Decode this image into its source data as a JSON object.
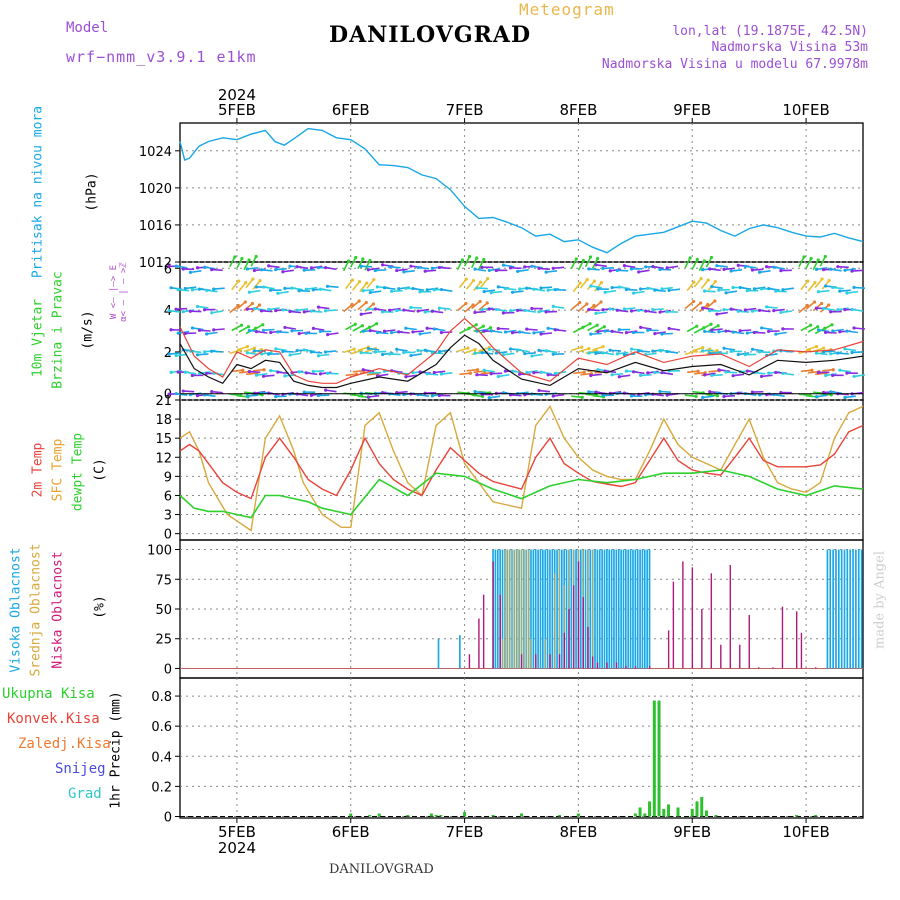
{
  "header": {
    "model_label": "Model",
    "model_name": "wrf−nmm_v3.9.1  e1km",
    "title": "DANILOVGRAD",
    "subtitle": "Meteogram",
    "lonlat": "lon,lat (19.1875E, 42.5N)",
    "elevation": "Nadmorska Visina 53m",
    "model_elevation": "Nadmorska Visina u modelu 67.9978m"
  },
  "footer": {
    "station": "DANILOVGRAD"
  },
  "watermark": "made by Angel",
  "colors": {
    "pressure": "#19a7e6",
    "temp2m": "#e8443a",
    "sfc": "#d8a93c",
    "dewpt": "#2ed02e",
    "high_cloud": "#19a7e6",
    "mid_cloud": "#d8a93c",
    "low_cloud": "#b01a7a",
    "precip": "#2ec02e",
    "wind_speed": "#111111",
    "wind_gust": "#e8443a"
  },
  "chart_data": [
    {
      "type": "line",
      "panel": "pressure",
      "ylabel": "Pritisak na nivou mora",
      "unit": "(hPa)",
      "ylim": [
        1012,
        1027
      ],
      "yticks": [
        "1024",
        "1020",
        "1016",
        "1012"
      ],
      "xticks": [
        "5FEB",
        "6FEB",
        "7FEB",
        "8FEB",
        "9FEB",
        "10FEB"
      ],
      "xyear": "2024",
      "x_hours": [
        0,
        1,
        2,
        4,
        6,
        9,
        12,
        15,
        18,
        20,
        22,
        24,
        27,
        30,
        33,
        36,
        39,
        42,
        45,
        48,
        51,
        54,
        57,
        60,
        63,
        66,
        69,
        72,
        75,
        78,
        81,
        84,
        87,
        90,
        93,
        96,
        99,
        102,
        105,
        108,
        111,
        114,
        117,
        120,
        123,
        126,
        129,
        132,
        135,
        138,
        141,
        144
      ],
      "values": [
        1025,
        1023,
        1023.2,
        1024.5,
        1025,
        1025.4,
        1025.2,
        1025.8,
        1026.2,
        1025,
        1024.6,
        1025.3,
        1026.4,
        1026.2,
        1025.4,
        1025.2,
        1024.2,
        1022.5,
        1022.4,
        1022.2,
        1021.4,
        1021,
        1019.8,
        1018,
        1016.7,
        1016.8,
        1016.3,
        1015.7,
        1014.8,
        1015,
        1014.2,
        1014.4,
        1013.6,
        1013,
        1014,
        1014.8,
        1015,
        1015.2,
        1015.8,
        1016.4,
        1016.2,
        1015.4,
        1014.8,
        1015.6,
        1016,
        1015.7,
        1015.2,
        1014.8,
        1014.7,
        1015.1,
        1014.6,
        1014.2
      ]
    },
    {
      "type": "line",
      "panel": "wind",
      "ylabel": "10m Vjetar",
      "ylabel2": "Brzina i Pravac",
      "unit": "(m/s)",
      "compass": "W  <— |—> E",
      "compass2": "α< — | — >ℤ",
      "ylim": [
        -0.3,
        6.3
      ],
      "yticks": [
        "6",
        "4",
        "2",
        "0"
      ],
      "series": [
        {
          "key": "speed",
          "x": [
            0,
            3,
            6,
            9,
            12,
            15,
            18,
            21,
            24,
            27,
            30,
            33,
            36,
            42,
            48,
            54,
            57,
            60,
            63,
            66,
            72,
            78,
            84,
            90,
            96,
            102,
            108,
            114,
            120,
            126,
            132,
            138,
            144
          ],
          "values": [
            2.4,
            1.2,
            0.8,
            0.5,
            1.4,
            1.2,
            1.6,
            1.5,
            0.6,
            0.4,
            0.3,
            0.3,
            0.5,
            0.8,
            0.6,
            1.4,
            2.2,
            2.8,
            2.4,
            1.6,
            0.7,
            0.4,
            1.2,
            1.0,
            1.5,
            1.1,
            1.3,
            1.4,
            0.9,
            1.6,
            1.5,
            1.6,
            1.8
          ]
        },
        {
          "key": "gust",
          "x": [
            0,
            3,
            6,
            9,
            12,
            15,
            18,
            21,
            24,
            27,
            30,
            33,
            36,
            42,
            48,
            54,
            57,
            60,
            63,
            66,
            72,
            78,
            84,
            90,
            96,
            102,
            108,
            114,
            120,
            126,
            132,
            138,
            144
          ],
          "values": [
            3.2,
            1.8,
            1.2,
            0.8,
            2.0,
            1.7,
            2.1,
            2.0,
            0.9,
            0.6,
            0.5,
            0.5,
            0.8,
            1.2,
            0.9,
            2.0,
            3.0,
            3.6,
            3.0,
            2.2,
            1.0,
            0.6,
            1.7,
            1.4,
            2.0,
            1.5,
            1.8,
            1.9,
            1.3,
            2.1,
            2.0,
            2.1,
            2.5
          ]
        }
      ]
    },
    {
      "type": "line",
      "panel": "temperature",
      "labels": [
        "2m Temp",
        "SFC Temp",
        "dewpt Temp"
      ],
      "unit": "(C)",
      "ylim": [
        -1,
        21
      ],
      "yticks": [
        "21",
        "18",
        "15",
        "12",
        "9",
        "6",
        "3",
        "0"
      ],
      "series": [
        {
          "key": "t2m",
          "x": [
            0,
            2,
            4,
            6,
            9,
            12,
            15,
            18,
            21,
            24,
            27,
            30,
            33,
            36,
            39,
            42,
            45,
            48,
            51,
            54,
            57,
            60,
            63,
            66,
            69,
            72,
            75,
            78,
            81,
            84,
            87,
            90,
            93,
            96,
            99,
            102,
            105,
            108,
            111,
            114,
            117,
            120,
            123,
            126,
            129,
            132,
            135,
            138,
            141,
            144
          ],
          "values": [
            13,
            14,
            13,
            11,
            8,
            6.5,
            5.5,
            12,
            15,
            12,
            8.5,
            7,
            6,
            10,
            15,
            11,
            8.5,
            7,
            6,
            10,
            13.5,
            11.5,
            9.5,
            8.2,
            7.6,
            7,
            12,
            15,
            11,
            9.5,
            8.2,
            7.8,
            7.4,
            8,
            11.5,
            15,
            11.5,
            10,
            9.5,
            9.2,
            12,
            15,
            11.5,
            10.5,
            10.5,
            10.5,
            10.8,
            12.5,
            16,
            17
          ]
        },
        {
          "key": "sfc",
          "x": [
            0,
            2,
            4,
            6,
            8,
            10,
            12,
            15,
            18,
            21,
            24,
            26,
            28,
            30,
            32,
            34,
            36,
            39,
            42,
            45,
            48,
            51,
            54,
            57,
            60,
            63,
            66,
            69,
            72,
            75,
            78,
            81,
            84,
            87,
            90,
            93,
            96,
            99,
            102,
            105,
            108,
            111,
            114,
            117,
            120,
            123,
            126,
            129,
            132,
            135,
            138,
            141,
            144
          ],
          "values": [
            15,
            16,
            13,
            8,
            5.5,
            3,
            2,
            0.5,
            15,
            18.5,
            13,
            8,
            5.5,
            3,
            2,
            1,
            1,
            17,
            19,
            13,
            8,
            6,
            17,
            19,
            11,
            8,
            5,
            4.5,
            4,
            17,
            20,
            15,
            12,
            10,
            9,
            8.5,
            8.5,
            13,
            18,
            14,
            12,
            11,
            10,
            14,
            18,
            12,
            8,
            7,
            6.5,
            8,
            15,
            19,
            20
          ]
        },
        {
          "key": "dewpt",
          "x": [
            0,
            3,
            6,
            9,
            12,
            15,
            18,
            21,
            24,
            27,
            30,
            33,
            36,
            42,
            48,
            54,
            60,
            66,
            72,
            78,
            84,
            90,
            96,
            102,
            108,
            114,
            120,
            126,
            132,
            138,
            144
          ],
          "values": [
            6,
            4,
            3.5,
            3.5,
            3,
            2.5,
            6,
            6,
            5.5,
            5,
            4,
            3.5,
            3,
            8.5,
            6,
            9.5,
            9,
            7,
            5.5,
            7.5,
            8.5,
            8,
            8.5,
            9.5,
            9.5,
            10,
            9,
            7,
            6,
            7.5,
            7
          ]
        }
      ]
    },
    {
      "type": "bar",
      "panel": "cloud",
      "labels": [
        "Visoka Oblacnost",
        "Srednja Oblacnost",
        "Niska Oblacnost"
      ],
      "unit": "(%)",
      "ylim": [
        -8,
        108
      ],
      "yticks": [
        "100",
        "75",
        "50",
        "25",
        "0"
      ],
      "series": [
        {
          "key": "high",
          "x": [
            54.5,
            59,
            66,
            66.5,
            67,
            67.5,
            68,
            68.5,
            69,
            69.5,
            70,
            70.5,
            71,
            71.5,
            72,
            72.5,
            73,
            73.5,
            74,
            74.5,
            75,
            75.5,
            76,
            76.5,
            77,
            77.5,
            78,
            78.5,
            79,
            79.5,
            80,
            80.5,
            81,
            81.5,
            82,
            82.5,
            83,
            83.5,
            84,
            84.5,
            85,
            85.5,
            86,
            86.5,
            87,
            87.5,
            88,
            88.5,
            89,
            89.5,
            90,
            90.5,
            91,
            91.5,
            92,
            92.5,
            93,
            93.5,
            94,
            94.5,
            95,
            95.5,
            96,
            96.5,
            97,
            97.5,
            98,
            98.5,
            99
          ],
          "values": [
            25,
            28,
            100,
            100,
            100,
            100,
            100,
            100,
            100,
            100,
            100,
            100,
            100,
            100,
            100,
            100,
            100,
            100,
            100,
            100,
            100,
            100,
            100,
            100,
            100,
            100,
            100,
            100,
            100,
            100,
            100,
            100,
            100,
            100,
            100,
            100,
            100,
            100,
            100,
            100,
            100,
            100,
            100,
            100,
            100,
            100,
            100,
            100,
            100,
            100,
            100,
            100,
            100,
            100,
            100,
            100,
            100,
            100,
            100,
            100,
            100,
            100,
            100,
            100,
            100,
            100,
            100,
            100,
            100
          ]
        },
        {
          "key": "mid",
          "x": [
            68,
            68.5,
            69,
            69.5,
            70,
            70.5,
            71,
            71.5,
            72,
            72.5,
            73,
            73.5,
            74,
            77,
            79,
            80,
            81,
            82,
            83,
            84,
            85,
            86,
            87
          ],
          "values": [
            25,
            100,
            100,
            100,
            100,
            100,
            100,
            100,
            100,
            100,
            100,
            100,
            25,
            25,
            80,
            100,
            70,
            100,
            100,
            100,
            100,
            100,
            100
          ]
        },
        {
          "key": "low",
          "x": [
            61,
            63,
            64,
            66,
            67.5,
            72,
            75,
            78,
            80,
            81,
            82,
            83,
            84,
            85,
            86,
            87,
            88,
            90,
            92,
            94,
            96,
            99,
            103,
            104,
            106,
            108,
            110,
            112,
            114,
            116,
            118,
            120,
            122,
            125,
            127,
            130,
            131,
            134
          ],
          "values": [
            12,
            42,
            62,
            90,
            62,
            12,
            12,
            12,
            12,
            30,
            50,
            70,
            90,
            60,
            35,
            10,
            5,
            5,
            5,
            2,
            2,
            2,
            32,
            73,
            90,
            85,
            50,
            80,
            20,
            87,
            20,
            45,
            1,
            1,
            52,
            48,
            30,
            1
          ]
        }
      ]
    },
    {
      "type": "bar",
      "panel": "precip",
      "labels": [
        "Ukupna Kisa",
        "Konvek.Kisa",
        "Zaledj.Kisa",
        "Snijeg",
        "Grad"
      ],
      "unit": "1hr Precip (mm)",
      "ylim": [
        -0.01,
        0.92
      ],
      "yticks": [
        "0.8",
        "0.6",
        "0.4",
        "0.2",
        "0"
      ],
      "x": [
        36,
        40,
        42,
        48,
        53,
        54,
        55,
        60,
        66,
        72,
        80,
        84,
        96,
        97,
        98,
        99,
        100,
        101,
        102,
        103,
        105,
        108,
        109,
        110,
        111,
        113,
        130,
        134
      ],
      "values": [
        0.02,
        0.01,
        0.02,
        0.01,
        0.02,
        0.01,
        0.01,
        0.03,
        0.01,
        0.02,
        0.01,
        0.02,
        0.02,
        0.06,
        0.02,
        0.1,
        0.77,
        0.77,
        0.05,
        0.08,
        0.06,
        0.05,
        0.1,
        0.13,
        0.04,
        0.01,
        0.01,
        0.01
      ]
    }
  ]
}
